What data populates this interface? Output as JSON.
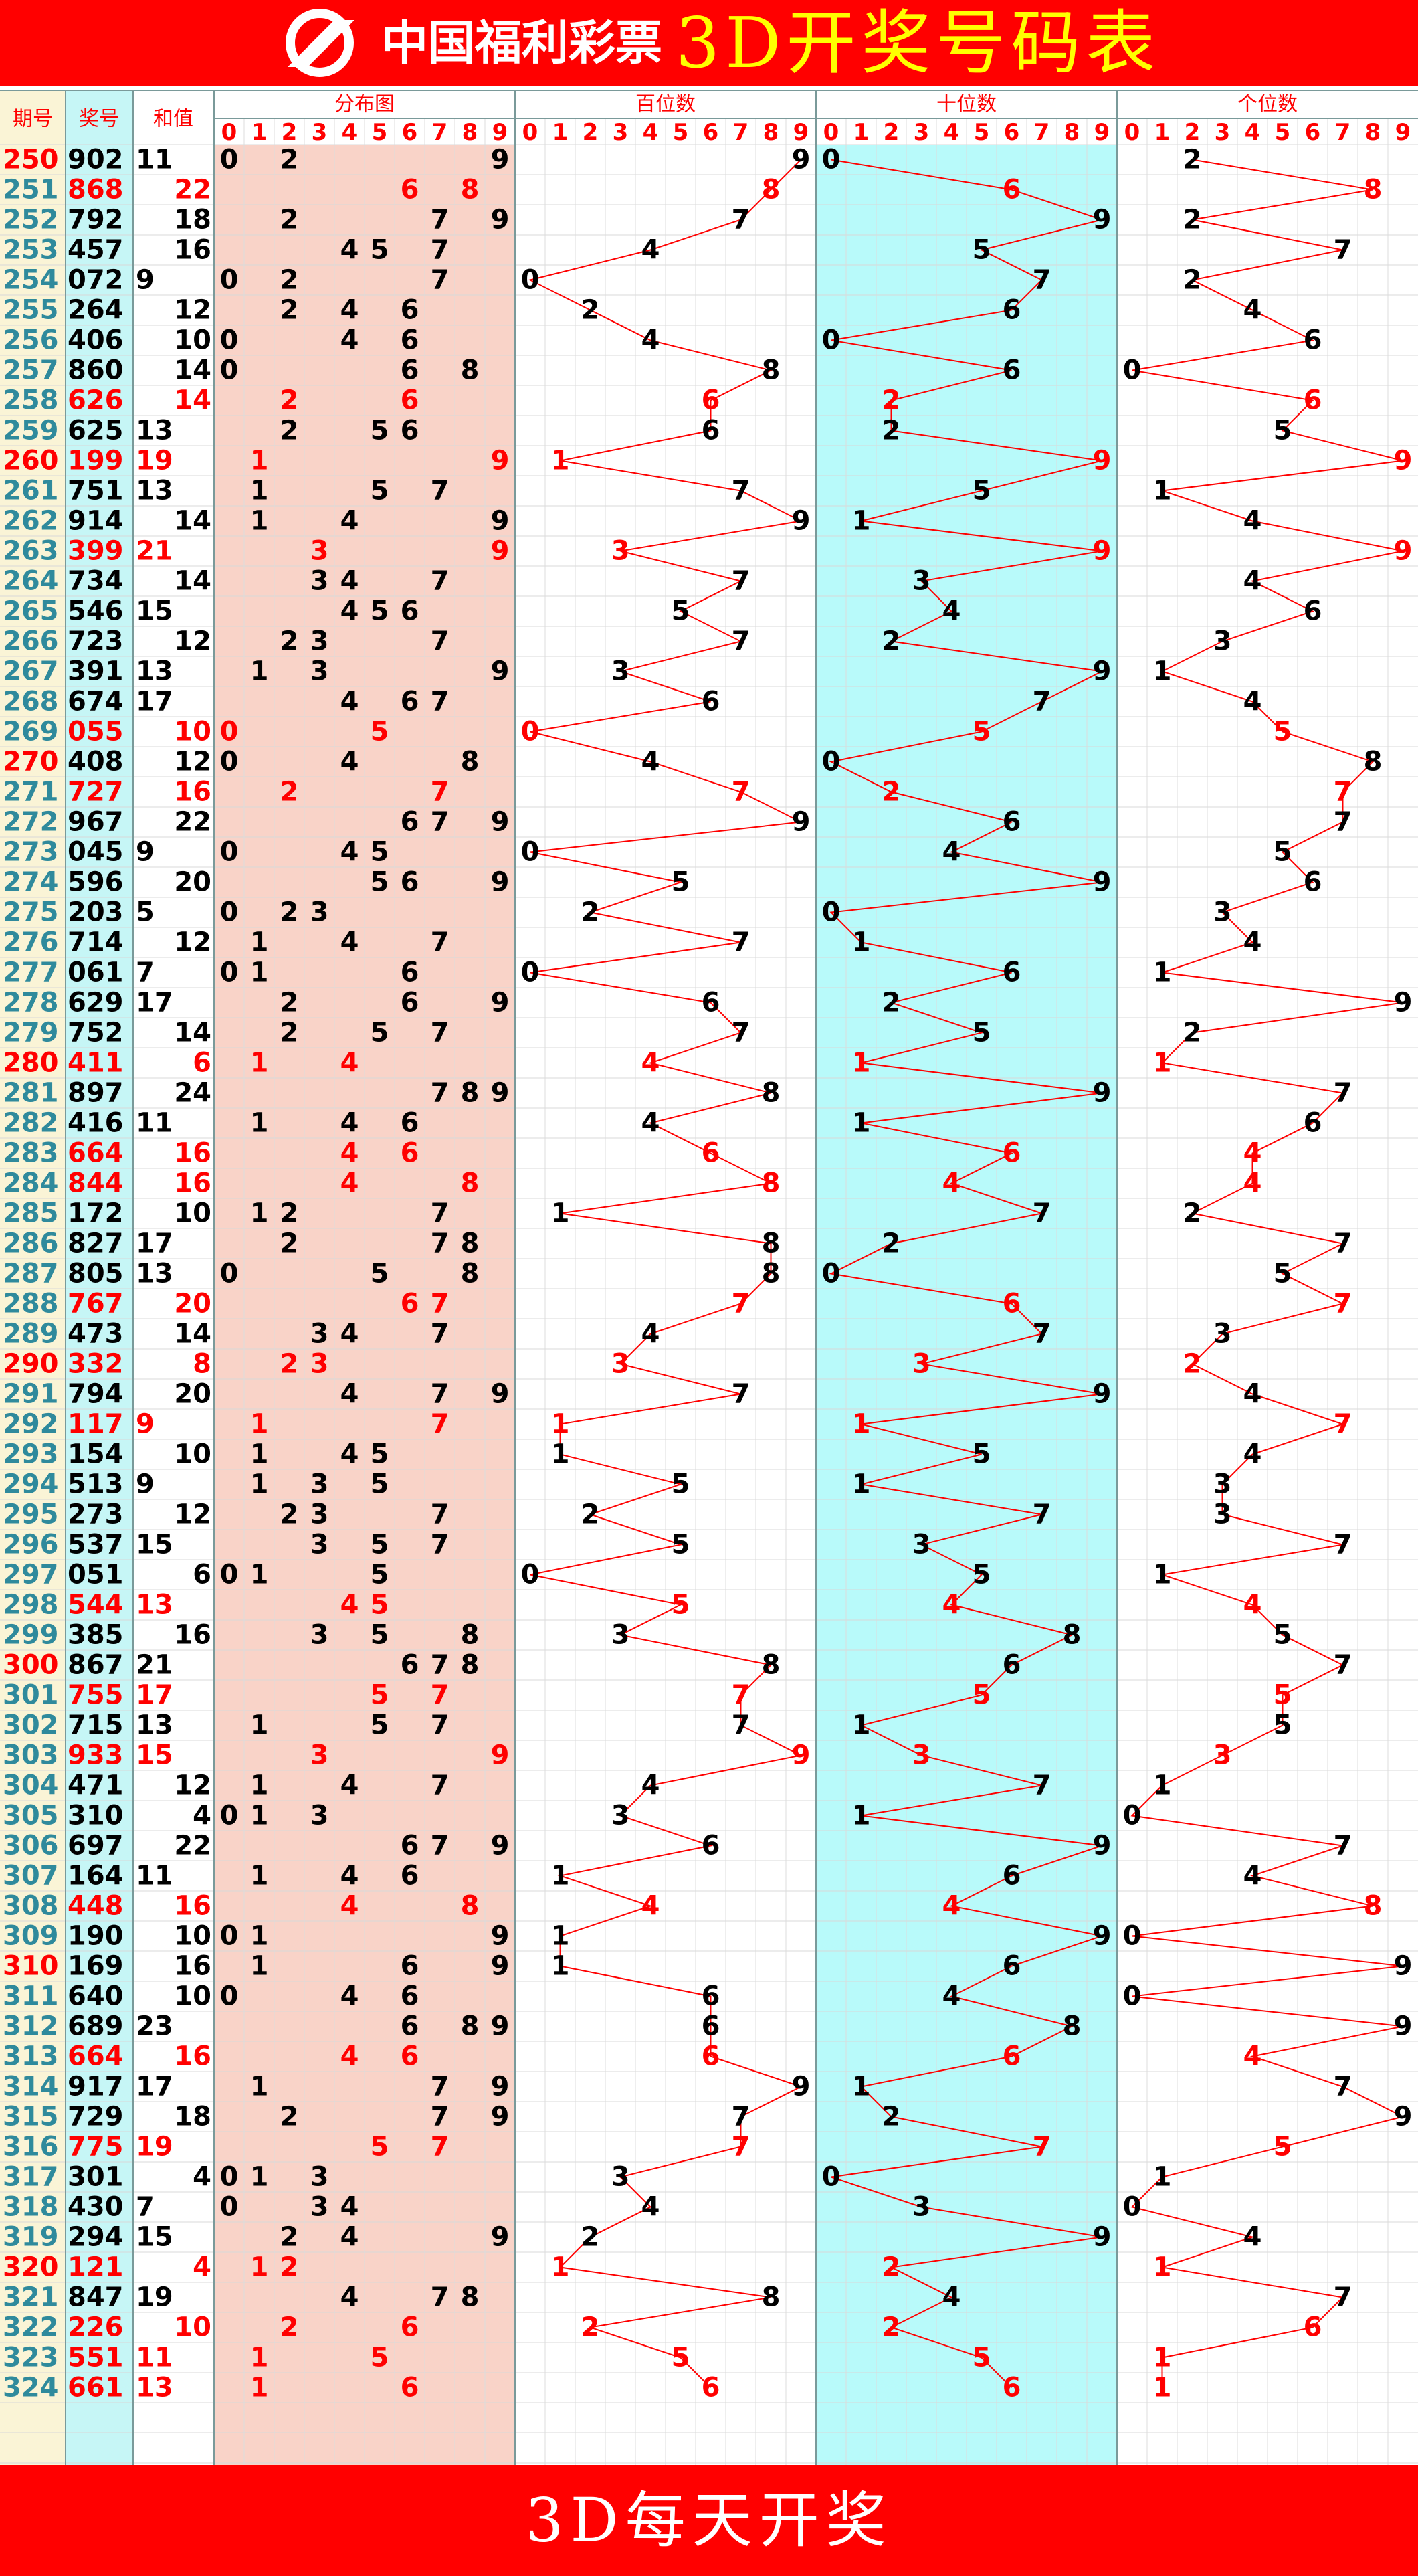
{
  "header": {
    "logo_text": "中国福利彩票",
    "title": "3D开奖号码表"
  },
  "columns": {
    "issue": "期号",
    "number": "奖号",
    "sum": "和值",
    "distribution": "分布图",
    "hundreds": "百位数",
    "tens": "十位数",
    "units": "个位数"
  },
  "digit_labels": [
    0,
    1,
    2,
    3,
    4,
    5,
    6,
    7,
    8,
    9
  ],
  "rows": [
    {
      "issue": 250,
      "number": "902",
      "sum": 11,
      "digits": [
        9,
        0,
        2
      ]
    },
    {
      "issue": 251,
      "number": "868",
      "sum": 22,
      "digits": [
        8,
        6,
        8
      ]
    },
    {
      "issue": 252,
      "number": "792",
      "sum": 18,
      "digits": [
        7,
        9,
        2
      ]
    },
    {
      "issue": 253,
      "number": "457",
      "sum": 16,
      "digits": [
        4,
        5,
        7
      ]
    },
    {
      "issue": 254,
      "number": "072",
      "sum": 9,
      "digits": [
        0,
        7,
        2
      ]
    },
    {
      "issue": 255,
      "number": "264",
      "sum": 12,
      "digits": [
        2,
        6,
        4
      ]
    },
    {
      "issue": 256,
      "number": "406",
      "sum": 10,
      "digits": [
        4,
        0,
        6
      ]
    },
    {
      "issue": 257,
      "number": "860",
      "sum": 14,
      "digits": [
        8,
        6,
        0
      ]
    },
    {
      "issue": 258,
      "number": "626",
      "sum": 14,
      "digits": [
        6,
        2,
        6
      ]
    },
    {
      "issue": 259,
      "number": "625",
      "sum": 13,
      "digits": [
        6,
        2,
        5
      ]
    },
    {
      "issue": 260,
      "number": "199",
      "sum": 19,
      "digits": [
        1,
        9,
        9
      ]
    },
    {
      "issue": 261,
      "number": "751",
      "sum": 13,
      "digits": [
        7,
        5,
        1
      ]
    },
    {
      "issue": 262,
      "number": "914",
      "sum": 14,
      "digits": [
        9,
        1,
        4
      ]
    },
    {
      "issue": 263,
      "number": "399",
      "sum": 21,
      "digits": [
        3,
        9,
        9
      ]
    },
    {
      "issue": 264,
      "number": "734",
      "sum": 14,
      "digits": [
        7,
        3,
        4
      ]
    },
    {
      "issue": 265,
      "number": "546",
      "sum": 15,
      "digits": [
        5,
        4,
        6
      ]
    },
    {
      "issue": 266,
      "number": "723",
      "sum": 12,
      "digits": [
        7,
        2,
        3
      ]
    },
    {
      "issue": 267,
      "number": "391",
      "sum": 13,
      "digits": [
        3,
        9,
        1
      ]
    },
    {
      "issue": 268,
      "number": "674",
      "sum": 17,
      "digits": [
        6,
        7,
        4
      ]
    },
    {
      "issue": 269,
      "number": "055",
      "sum": 10,
      "digits": [
        0,
        5,
        5
      ]
    },
    {
      "issue": 270,
      "number": "408",
      "sum": 12,
      "digits": [
        4,
        0,
        8
      ]
    },
    {
      "issue": 271,
      "number": "727",
      "sum": 16,
      "digits": [
        7,
        2,
        7
      ]
    },
    {
      "issue": 272,
      "number": "967",
      "sum": 22,
      "digits": [
        9,
        6,
        7
      ]
    },
    {
      "issue": 273,
      "number": "045",
      "sum": 9,
      "digits": [
        0,
        4,
        5
      ]
    },
    {
      "issue": 274,
      "number": "596",
      "sum": 20,
      "digits": [
        5,
        9,
        6
      ]
    },
    {
      "issue": 275,
      "number": "203",
      "sum": 5,
      "digits": [
        2,
        0,
        3
      ]
    },
    {
      "issue": 276,
      "number": "714",
      "sum": 12,
      "digits": [
        7,
        1,
        4
      ]
    },
    {
      "issue": 277,
      "number": "061",
      "sum": 7,
      "digits": [
        0,
        6,
        1
      ]
    },
    {
      "issue": 278,
      "number": "629",
      "sum": 17,
      "digits": [
        6,
        2,
        9
      ]
    },
    {
      "issue": 279,
      "number": "752",
      "sum": 14,
      "digits": [
        7,
        5,
        2
      ]
    },
    {
      "issue": 280,
      "number": "411",
      "sum": 6,
      "digits": [
        4,
        1,
        1
      ]
    },
    {
      "issue": 281,
      "number": "897",
      "sum": 24,
      "digits": [
        8,
        9,
        7
      ]
    },
    {
      "issue": 282,
      "number": "416",
      "sum": 11,
      "digits": [
        4,
        1,
        6
      ]
    },
    {
      "issue": 283,
      "number": "664",
      "sum": 16,
      "digits": [
        6,
        6,
        4
      ]
    },
    {
      "issue": 284,
      "number": "844",
      "sum": 16,
      "digits": [
        8,
        4,
        4
      ]
    },
    {
      "issue": 285,
      "number": "172",
      "sum": 10,
      "digits": [
        1,
        7,
        2
      ]
    },
    {
      "issue": 286,
      "number": "827",
      "sum": 17,
      "digits": [
        8,
        2,
        7
      ]
    },
    {
      "issue": 287,
      "number": "805",
      "sum": 13,
      "digits": [
        8,
        0,
        5
      ]
    },
    {
      "issue": 288,
      "number": "767",
      "sum": 20,
      "digits": [
        7,
        6,
        7
      ]
    },
    {
      "issue": 289,
      "number": "473",
      "sum": 14,
      "digits": [
        4,
        7,
        3
      ]
    },
    {
      "issue": 290,
      "number": "332",
      "sum": 8,
      "digits": [
        3,
        3,
        2
      ]
    },
    {
      "issue": 291,
      "number": "794",
      "sum": 20,
      "digits": [
        7,
        9,
        4
      ]
    },
    {
      "issue": 292,
      "number": "117",
      "sum": 9,
      "digits": [
        1,
        1,
        7
      ]
    },
    {
      "issue": 293,
      "number": "154",
      "sum": 10,
      "digits": [
        1,
        5,
        4
      ]
    },
    {
      "issue": 294,
      "number": "513",
      "sum": 9,
      "digits": [
        5,
        1,
        3
      ]
    },
    {
      "issue": 295,
      "number": "273",
      "sum": 12,
      "digits": [
        2,
        7,
        3
      ]
    },
    {
      "issue": 296,
      "number": "537",
      "sum": 15,
      "digits": [
        5,
        3,
        7
      ]
    },
    {
      "issue": 297,
      "number": "051",
      "sum": 6,
      "digits": [
        0,
        5,
        1
      ]
    },
    {
      "issue": 298,
      "number": "544",
      "sum": 13,
      "digits": [
        5,
        4,
        4
      ]
    },
    {
      "issue": 299,
      "number": "385",
      "sum": 16,
      "digits": [
        3,
        8,
        5
      ]
    },
    {
      "issue": 300,
      "number": "867",
      "sum": 21,
      "digits": [
        8,
        6,
        7
      ]
    },
    {
      "issue": 301,
      "number": "755",
      "sum": 17,
      "digits": [
        7,
        5,
        5
      ]
    },
    {
      "issue": 302,
      "number": "715",
      "sum": 13,
      "digits": [
        7,
        1,
        5
      ]
    },
    {
      "issue": 303,
      "number": "933",
      "sum": 15,
      "digits": [
        9,
        3,
        3
      ]
    },
    {
      "issue": 304,
      "number": "471",
      "sum": 12,
      "digits": [
        4,
        7,
        1
      ]
    },
    {
      "issue": 305,
      "number": "310",
      "sum": 4,
      "digits": [
        3,
        1,
        0
      ]
    },
    {
      "issue": 306,
      "number": "697",
      "sum": 22,
      "digits": [
        6,
        9,
        7
      ]
    },
    {
      "issue": 307,
      "number": "164",
      "sum": 11,
      "digits": [
        1,
        6,
        4
      ]
    },
    {
      "issue": 308,
      "number": "448",
      "sum": 16,
      "digits": [
        4,
        4,
        8
      ]
    },
    {
      "issue": 309,
      "number": "190",
      "sum": 10,
      "digits": [
        1,
        9,
        0
      ]
    },
    {
      "issue": 310,
      "number": "169",
      "sum": 16,
      "digits": [
        1,
        6,
        9
      ]
    },
    {
      "issue": 311,
      "number": "640",
      "sum": 10,
      "digits": [
        6,
        4,
        0
      ]
    },
    {
      "issue": 312,
      "number": "689",
      "sum": 23,
      "digits": [
        6,
        8,
        9
      ]
    },
    {
      "issue": 313,
      "number": "664",
      "sum": 16,
      "digits": [
        6,
        6,
        4
      ]
    },
    {
      "issue": 314,
      "number": "917",
      "sum": 17,
      "digits": [
        9,
        1,
        7
      ]
    },
    {
      "issue": 315,
      "number": "729",
      "sum": 18,
      "digits": [
        7,
        2,
        9
      ]
    },
    {
      "issue": 316,
      "number": "775",
      "sum": 19,
      "digits": [
        7,
        7,
        5
      ]
    },
    {
      "issue": 317,
      "number": "301",
      "sum": 4,
      "digits": [
        3,
        0,
        1
      ]
    },
    {
      "issue": 318,
      "number": "430",
      "sum": 7,
      "digits": [
        4,
        3,
        0
      ]
    },
    {
      "issue": 319,
      "number": "294",
      "sum": 15,
      "digits": [
        2,
        9,
        4
      ]
    },
    {
      "issue": 320,
      "number": "121",
      "sum": 4,
      "digits": [
        1,
        2,
        1
      ]
    },
    {
      "issue": 321,
      "number": "847",
      "sum": 19,
      "digits": [
        8,
        4,
        7
      ]
    },
    {
      "issue": 322,
      "number": "226",
      "sum": 10,
      "digits": [
        2,
        2,
        6
      ]
    },
    {
      "issue": 323,
      "number": "551",
      "sum": 11,
      "digits": [
        5,
        5,
        1
      ]
    },
    {
      "issue": 324,
      "number": "661",
      "sum": 13,
      "digits": [
        6,
        6,
        1
      ]
    }
  ],
  "footer": "3D每天开奖"
}
